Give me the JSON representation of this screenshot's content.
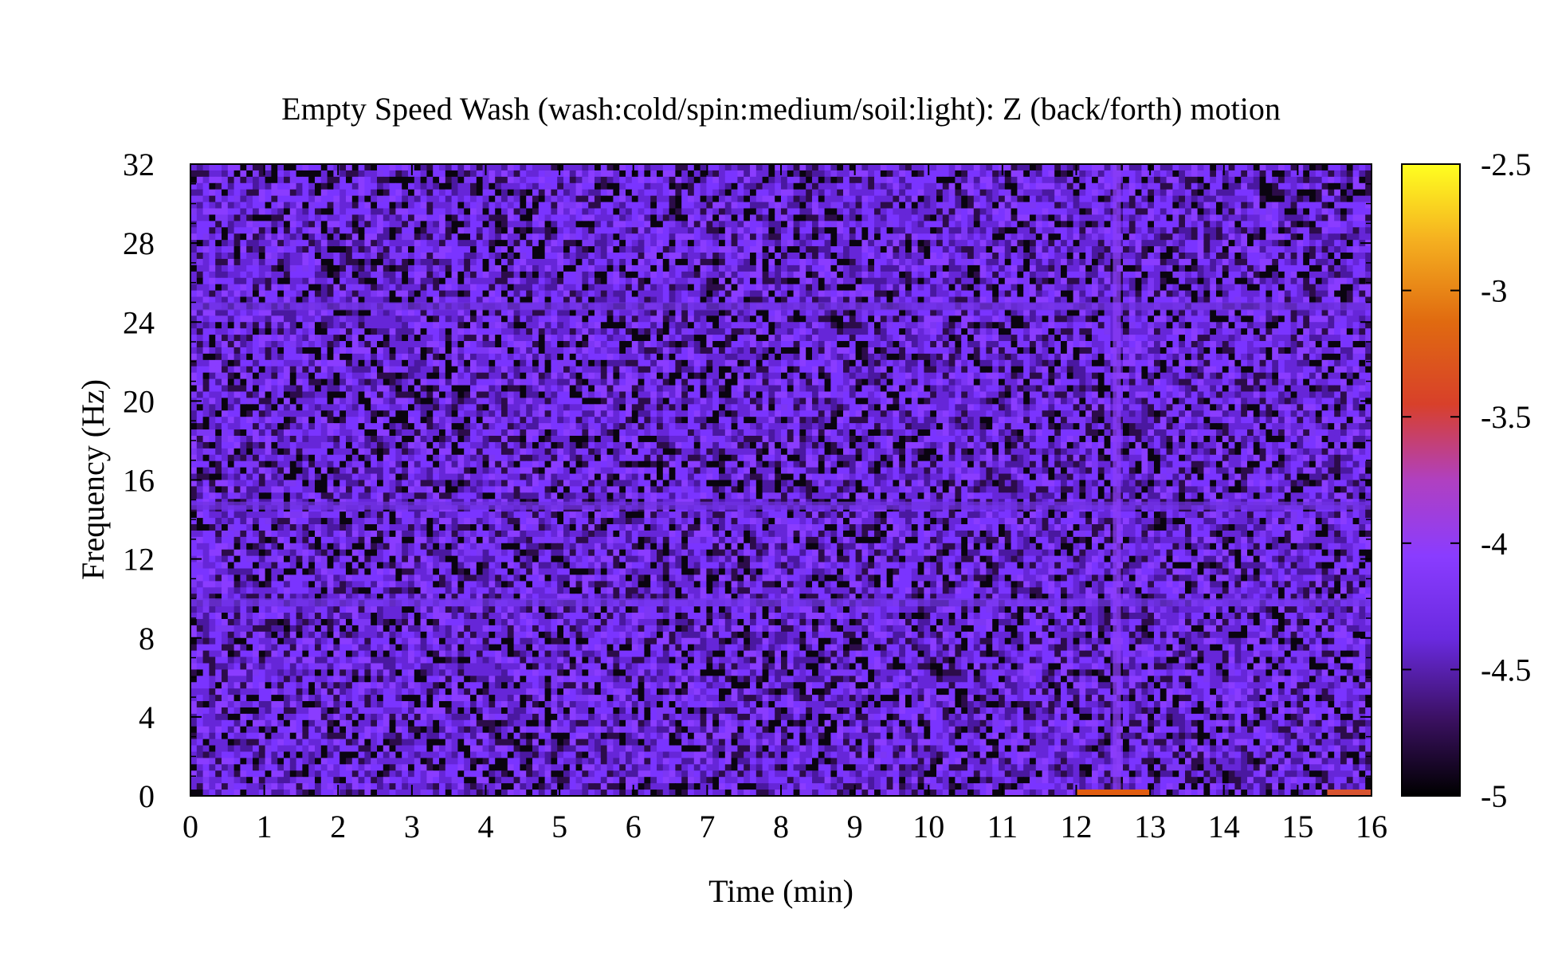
{
  "chart_data": {
    "type": "heatmap",
    "title": "Empty Speed Wash (wash:cold/spin:medium/soil:light): Z (back/forth) motion",
    "xlabel": "Time (min)",
    "ylabel": "Frequency (Hz)",
    "xlim": [
      0,
      16
    ],
    "ylim": [
      0,
      32
    ],
    "x_ticks": [
      0,
      1,
      2,
      3,
      4,
      5,
      6,
      7,
      8,
      9,
      10,
      11,
      12,
      13,
      14,
      15,
      16
    ],
    "y_ticks": [
      0,
      4,
      8,
      12,
      16,
      20,
      24,
      28,
      32
    ],
    "colorbar": {
      "range": [
        -5,
        -2.5
      ],
      "ticks": [
        "-2.5",
        "-3",
        "-3.5",
        "-4",
        "-4.5",
        "-5"
      ],
      "colormap": "black-purple-magenta-orange-yellow",
      "colors": [
        "#000000",
        "#5a1aa0",
        "#7b3cff",
        "#9a3ff0",
        "#c0409a",
        "#e05a10",
        "#ffae20",
        "#ffff20"
      ]
    },
    "background_level": -4.5,
    "features": [
      {
        "kind": "horizontal-band",
        "frequency_hz": 9.8,
        "level": -4.35
      },
      {
        "kind": "horizontal-band",
        "frequency_hz": 14.7,
        "level": -4.4
      },
      {
        "kind": "horizontal-band",
        "frequency_hz": 24.8,
        "level": -4.4
      },
      {
        "kind": "vertical-band",
        "time_min": 12.55,
        "level": -4.1
      },
      {
        "kind": "low-frequency-segment",
        "time_range_min": [
          12.0,
          13.0
        ],
        "frequency_hz": 0.2,
        "level": -3.2
      },
      {
        "kind": "low-frequency-segment",
        "time_range_min": [
          15.4,
          16.0
        ],
        "frequency_hz": 0.2,
        "level": -3.3
      }
    ]
  }
}
